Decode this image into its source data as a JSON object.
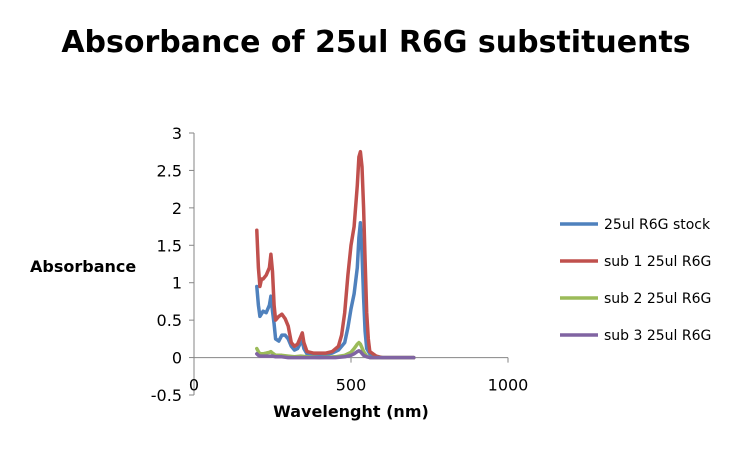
{
  "chart_data": {
    "type": "line",
    "title": "Absorbance of 25ul R6G substituents",
    "xlabel": "Wavelenght (nm)",
    "ylabel": "Absorbance",
    "xlim": [
      0,
      1000
    ],
    "ylim": [
      -0.5,
      3
    ],
    "x_ticks": [
      "0",
      "500",
      "1000"
    ],
    "y_ticks": [
      "-0.5",
      "0",
      "0.5",
      "1",
      "1.5",
      "2",
      "2.5",
      "3"
    ],
    "grid": false,
    "legend_position": "right",
    "series": [
      {
        "name": "25ul R6G stock",
        "color": "#4F81BD",
        "points": [
          [
            200,
            0.95
          ],
          [
            205,
            0.7
          ],
          [
            210,
            0.55
          ],
          [
            220,
            0.62
          ],
          [
            230,
            0.6
          ],
          [
            240,
            0.7
          ],
          [
            245,
            0.82
          ],
          [
            250,
            0.62
          ],
          [
            255,
            0.45
          ],
          [
            260,
            0.25
          ],
          [
            270,
            0.22
          ],
          [
            280,
            0.3
          ],
          [
            290,
            0.3
          ],
          [
            300,
            0.25
          ],
          [
            310,
            0.15
          ],
          [
            320,
            0.1
          ],
          [
            330,
            0.12
          ],
          [
            340,
            0.2
          ],
          [
            345,
            0.22
          ],
          [
            350,
            0.12
          ],
          [
            360,
            0.05
          ],
          [
            380,
            0.04
          ],
          [
            400,
            0.04
          ],
          [
            420,
            0.04
          ],
          [
            440,
            0.06
          ],
          [
            460,
            0.1
          ],
          [
            480,
            0.2
          ],
          [
            490,
            0.4
          ],
          [
            500,
            0.65
          ],
          [
            510,
            0.85
          ],
          [
            520,
            1.2
          ],
          [
            525,
            1.6
          ],
          [
            530,
            1.8
          ],
          [
            535,
            1.4
          ],
          [
            540,
            0.8
          ],
          [
            545,
            0.35
          ],
          [
            550,
            0.12
          ],
          [
            560,
            0.05
          ],
          [
            580,
            0.01
          ],
          [
            600,
            0.0
          ],
          [
            650,
            0.0
          ],
          [
            700,
            0.0
          ]
        ]
      },
      {
        "name": "sub 1 25ul R6G",
        "color": "#C0504D",
        "points": [
          [
            200,
            1.7
          ],
          [
            205,
            1.2
          ],
          [
            210,
            0.95
          ],
          [
            215,
            1.05
          ],
          [
            220,
            1.05
          ],
          [
            230,
            1.1
          ],
          [
            240,
            1.2
          ],
          [
            245,
            1.38
          ],
          [
            250,
            1.15
          ],
          [
            255,
            0.7
          ],
          [
            260,
            0.5
          ],
          [
            270,
            0.55
          ],
          [
            280,
            0.58
          ],
          [
            290,
            0.52
          ],
          [
            300,
            0.42
          ],
          [
            310,
            0.2
          ],
          [
            320,
            0.15
          ],
          [
            330,
            0.18
          ],
          [
            340,
            0.28
          ],
          [
            345,
            0.33
          ],
          [
            350,
            0.2
          ],
          [
            360,
            0.08
          ],
          [
            380,
            0.06
          ],
          [
            400,
            0.06
          ],
          [
            420,
            0.06
          ],
          [
            440,
            0.08
          ],
          [
            460,
            0.15
          ],
          [
            470,
            0.3
          ],
          [
            480,
            0.6
          ],
          [
            490,
            1.1
          ],
          [
            500,
            1.5
          ],
          [
            510,
            1.75
          ],
          [
            520,
            2.3
          ],
          [
            525,
            2.68
          ],
          [
            530,
            2.75
          ],
          [
            535,
            2.55
          ],
          [
            540,
            2.0
          ],
          [
            545,
            1.3
          ],
          [
            550,
            0.6
          ],
          [
            555,
            0.25
          ],
          [
            560,
            0.08
          ],
          [
            580,
            0.02
          ],
          [
            600,
            0.0
          ],
          [
            650,
            0.0
          ],
          [
            700,
            0.0
          ]
        ]
      },
      {
        "name": "sub 2 25ul R6G",
        "color": "#9BBB59",
        "points": [
          [
            200,
            0.12
          ],
          [
            205,
            0.08
          ],
          [
            210,
            0.05
          ],
          [
            220,
            0.05
          ],
          [
            230,
            0.06
          ],
          [
            240,
            0.07
          ],
          [
            245,
            0.08
          ],
          [
            250,
            0.06
          ],
          [
            260,
            0.03
          ],
          [
            280,
            0.03
          ],
          [
            300,
            0.02
          ],
          [
            320,
            0.01
          ],
          [
            340,
            0.02
          ],
          [
            360,
            0.01
          ],
          [
            400,
            0.0
          ],
          [
            450,
            0.01
          ],
          [
            480,
            0.03
          ],
          [
            500,
            0.07
          ],
          [
            510,
            0.12
          ],
          [
            520,
            0.18
          ],
          [
            525,
            0.2
          ],
          [
            530,
            0.18
          ],
          [
            540,
            0.08
          ],
          [
            550,
            0.02
          ],
          [
            560,
            0.0
          ],
          [
            600,
            0.0
          ],
          [
            650,
            0.0
          ],
          [
            700,
            0.0
          ]
        ]
      },
      {
        "name": "sub 3 25ul R6G",
        "color": "#8064A2",
        "points": [
          [
            200,
            0.05
          ],
          [
            205,
            0.03
          ],
          [
            210,
            0.02
          ],
          [
            220,
            0.02
          ],
          [
            240,
            0.02
          ],
          [
            250,
            0.02
          ],
          [
            260,
            0.01
          ],
          [
            280,
            0.01
          ],
          [
            300,
            0.0
          ],
          [
            350,
            0.0
          ],
          [
            400,
            0.0
          ],
          [
            450,
            0.0
          ],
          [
            480,
            0.01
          ],
          [
            500,
            0.03
          ],
          [
            510,
            0.05
          ],
          [
            520,
            0.08
          ],
          [
            525,
            0.09
          ],
          [
            530,
            0.08
          ],
          [
            540,
            0.03
          ],
          [
            550,
            0.01
          ],
          [
            560,
            0.0
          ],
          [
            600,
            0.0
          ],
          [
            650,
            0.0
          ],
          [
            700,
            0.0
          ]
        ]
      }
    ]
  }
}
